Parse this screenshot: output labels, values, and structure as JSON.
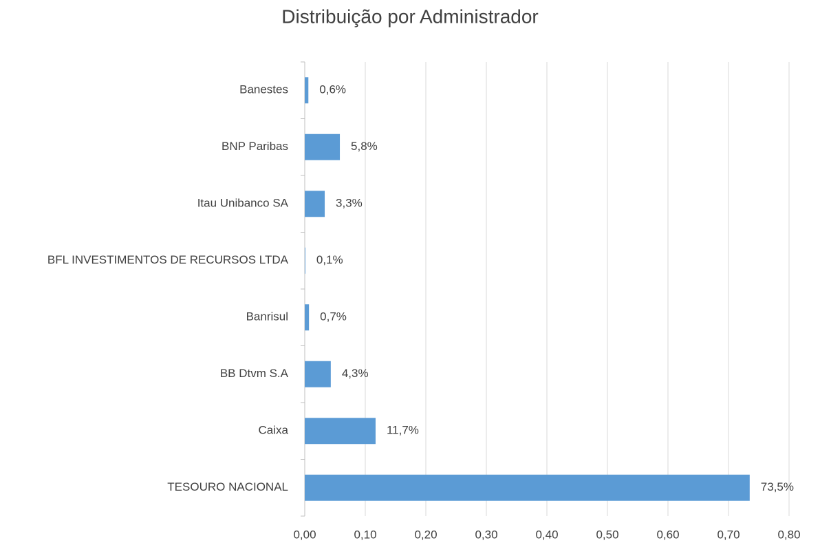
{
  "chart_data": {
    "type": "bar",
    "orientation": "horizontal",
    "title": "Distribuição por Administrador",
    "categories": [
      "Banestes",
      "BNP Paribas",
      "Itau Unibanco SA",
      "BFL INVESTIMENTOS DE RECURSOS LTDA",
      "Banrisul",
      "BB Dtvm S.A",
      "Caixa",
      "TESOURO NACIONAL"
    ],
    "values": [
      0.006,
      0.058,
      0.033,
      0.001,
      0.007,
      0.043,
      0.117,
      0.735
    ],
    "value_labels": [
      "0,6%",
      "5,8%",
      "3,3%",
      "0,1%",
      "0,7%",
      "4,3%",
      "11,7%",
      "73,5%"
    ],
    "color": "#5b9bd5",
    "xlim": [
      0,
      0.8
    ],
    "xticks": [
      {
        "value": 0,
        "label": "0,00"
      },
      {
        "value": 0.1,
        "label": "0,10"
      },
      {
        "value": 0.2,
        "label": "0,20"
      },
      {
        "value": 0.3,
        "label": "0,30"
      },
      {
        "value": 0.4,
        "label": "0,40"
      },
      {
        "value": 0.5,
        "label": "0,50"
      },
      {
        "value": 0.6,
        "label": "0,60"
      },
      {
        "value": 0.7,
        "label": "0,70"
      },
      {
        "value": 0.8,
        "label": "0,80"
      }
    ],
    "grid": true
  }
}
